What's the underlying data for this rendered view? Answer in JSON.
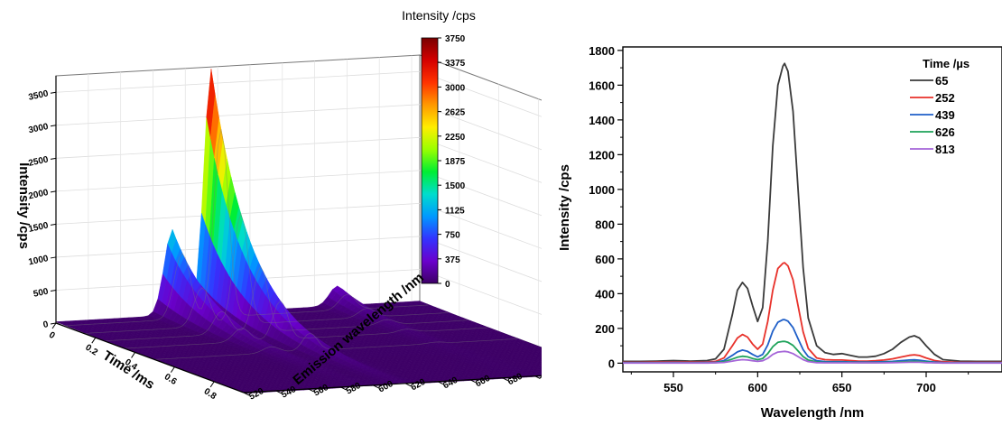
{
  "chart_data": [
    {
      "type": "surface3d",
      "zlabel": "Intensity /cps",
      "xlabel": "Time /ms",
      "ylabel": "Emission wavelength /nm",
      "z_ticks": [
        "0",
        "500",
        "1000",
        "1500",
        "2000",
        "2500",
        "3000",
        "3500"
      ],
      "time_ticks": [
        "0",
        "0.2",
        "0.4",
        "0.6",
        "0.8"
      ],
      "wavelength_ticks": [
        "520",
        "540",
        "560",
        "580",
        "600",
        "620",
        "640",
        "660",
        "680",
        "700",
        "720",
        "740"
      ],
      "colorbar": {
        "title": "Intensity /cps",
        "ticks": [
          "3750",
          "3375",
          "3000",
          "2625",
          "2250",
          "1875",
          "1500",
          "1125",
          "750",
          "375",
          "0"
        ],
        "colors": [
          "#7a0000",
          "#d40000",
          "#ff3300",
          "#ff9900",
          "#ffee00",
          "#99ff00",
          "#00ee33",
          "#00ddcc",
          "#0099ff",
          "#3333ff",
          "#6a00cc",
          "#3d0066"
        ]
      },
      "peak_profiles": [
        {
          "wavelength": 616,
          "intensity_at_t0": 3700,
          "decay_ms": 0.19
        },
        {
          "wavelength": 592,
          "intensity_at_t0": 1300,
          "decay_ms": 0.19
        },
        {
          "wavelength": 694,
          "intensity_at_t0": 300,
          "decay_ms": 0.19
        }
      ]
    },
    {
      "type": "line",
      "xlabel": "Wavelength /nm",
      "ylabel": "Intensity /cps",
      "xlim": [
        520,
        745
      ],
      "ylim": [
        -50,
        1820
      ],
      "x_ticks": [
        550,
        600,
        650,
        700
      ],
      "y_ticks": [
        0,
        200,
        400,
        600,
        800,
        1000,
        1200,
        1400,
        1600,
        1800
      ],
      "legend_title": "Time /µs",
      "legend_position": "top-right",
      "x": [
        520,
        530,
        540,
        550,
        560,
        570,
        575,
        580,
        585,
        588,
        591,
        594,
        597,
        600,
        603,
        606,
        609,
        612,
        615,
        616,
        618,
        621,
        624,
        627,
        630,
        635,
        640,
        645,
        650,
        655,
        660,
        665,
        670,
        675,
        680,
        685,
        690,
        693,
        696,
        700,
        705,
        710,
        720,
        730,
        745
      ],
      "series": [
        {
          "name": "65",
          "color": "#3a3a3a",
          "values": [
            10,
            10,
            12,
            15,
            12,
            15,
            25,
            80,
            280,
            420,
            465,
            430,
            330,
            240,
            320,
            700,
            1250,
            1600,
            1710,
            1725,
            1680,
            1450,
            1000,
            550,
            260,
            100,
            60,
            50,
            55,
            45,
            35,
            35,
            40,
            55,
            80,
            120,
            150,
            158,
            145,
            100,
            50,
            20,
            12,
            10,
            10
          ]
        },
        {
          "name": "252",
          "color": "#e8312a",
          "values": [
            5,
            5,
            6,
            7,
            6,
            7,
            10,
            30,
            100,
            145,
            165,
            150,
            110,
            80,
            110,
            240,
            420,
            545,
            575,
            578,
            560,
            480,
            330,
            180,
            85,
            30,
            20,
            18,
            18,
            15,
            12,
            12,
            14,
            18,
            25,
            35,
            45,
            48,
            44,
            30,
            15,
            8,
            5,
            5,
            5
          ]
        },
        {
          "name": "439",
          "color": "#1f5fc8",
          "values": [
            3,
            3,
            3,
            4,
            3,
            4,
            5,
            15,
            45,
            65,
            75,
            68,
            50,
            36,
            50,
            105,
            185,
            235,
            250,
            250,
            242,
            205,
            140,
            78,
            38,
            14,
            9,
            8,
            8,
            7,
            6,
            6,
            7,
            8,
            10,
            14,
            18,
            19,
            17,
            12,
            6,
            4,
            3,
            3,
            3
          ]
        },
        {
          "name": "626",
          "color": "#1ea35a",
          "values": [
            2,
            2,
            2,
            2,
            2,
            2,
            3,
            8,
            24,
            34,
            40,
            36,
            27,
            20,
            27,
            55,
            95,
            120,
            125,
            125,
            120,
            102,
            70,
            38,
            18,
            7,
            4,
            4,
            4,
            4,
            3,
            3,
            3,
            4,
            5,
            7,
            9,
            10,
            9,
            6,
            3,
            2,
            2,
            2,
            2
          ]
        },
        {
          "name": "813",
          "color": "#a565d8",
          "values": [
            1,
            1,
            1,
            1,
            1,
            1,
            2,
            4,
            12,
            17,
            20,
            18,
            14,
            10,
            14,
            28,
            50,
            64,
            67,
            68,
            65,
            55,
            38,
            20,
            9,
            3,
            2,
            2,
            2,
            2,
            2,
            2,
            2,
            2,
            3,
            4,
            5,
            5,
            5,
            3,
            2,
            1,
            1,
            1,
            1
          ]
        }
      ]
    }
  ]
}
